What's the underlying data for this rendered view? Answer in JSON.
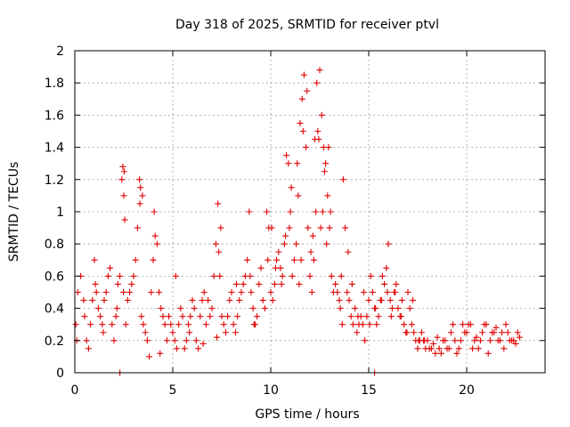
{
  "chart_data": {
    "type": "scatter",
    "title": "Day 318 of 2025, SRMTID for receiver ptvl",
    "xlabel": "GPS time / hours",
    "ylabel": "SRMTID / TECUs",
    "xlim": [
      0,
      24
    ],
    "ylim": [
      0,
      2
    ],
    "xticks": [
      0,
      5,
      10,
      15,
      20
    ],
    "xtick_labels": [
      "0",
      "5",
      "10",
      "15",
      "20"
    ],
    "yticks": [
      0,
      0.2,
      0.4,
      0.6,
      0.8,
      1,
      1.2,
      1.4,
      1.6,
      1.8,
      2
    ],
    "ytick_labels": [
      "0",
      "0.2",
      "0.4",
      "0.6",
      "0.8",
      "1",
      "1.2",
      "1.4",
      "1.6",
      "1.8",
      "2"
    ],
    "grid": true,
    "marker": "plus",
    "color": "#e00000",
    "series": [
      {
        "name": "SRMTID",
        "x": [
          0.05,
          0.15,
          0.3,
          0.45,
          0.6,
          0.7,
          0.8,
          0.9,
          1.0,
          1.1,
          1.2,
          1.3,
          1.4,
          1.5,
          1.6,
          1.7,
          1.8,
          1.9,
          2.0,
          2.1,
          2.2,
          2.3,
          2.4,
          2.45,
          2.5,
          2.55,
          2.6,
          2.7,
          2.8,
          2.9,
          3.0,
          3.1,
          3.2,
          3.3,
          3.35,
          3.4,
          3.5,
          3.6,
          3.7,
          3.8,
          3.9,
          4.0,
          4.1,
          4.2,
          4.3,
          4.4,
          4.5,
          4.6,
          4.7,
          4.8,
          4.9,
          5.0,
          5.1,
          5.2,
          5.3,
          5.4,
          5.5,
          5.6,
          5.7,
          5.8,
          5.9,
          6.0,
          6.1,
          6.2,
          6.3,
          6.4,
          6.5,
          6.6,
          6.7,
          6.8,
          6.9,
          7.0,
          7.1,
          7.2,
          7.3,
          7.4,
          7.5,
          7.6,
          7.7,
          7.8,
          7.9,
          8.0,
          8.1,
          8.2,
          8.3,
          8.4,
          8.5,
          8.6,
          8.7,
          8.8,
          8.9,
          9.0,
          9.1,
          9.2,
          9.3,
          9.4,
          9.5,
          9.6,
          9.7,
          9.8,
          9.9,
          10.0,
          10.1,
          10.2,
          10.3,
          10.4,
          10.5,
          10.6,
          10.7,
          10.8,
          10.9,
          11.0,
          11.1,
          11.2,
          11.3,
          11.4,
          11.5,
          11.6,
          11.7,
          11.8,
          11.9,
          12.0,
          12.1,
          12.2,
          12.3,
          12.4,
          12.5,
          12.6,
          12.7,
          12.8,
          12.9,
          13.0,
          13.1,
          13.2,
          13.3,
          13.4,
          13.5,
          13.6,
          13.7,
          13.8,
          13.9,
          14.0,
          14.1,
          14.2,
          14.3,
          14.4,
          14.5,
          14.6,
          14.7,
          14.8,
          14.9,
          15.0,
          15.1,
          15.2,
          15.3,
          15.4,
          15.5,
          15.6,
          15.7,
          15.8,
          15.9,
          16.0,
          16.1,
          16.2,
          16.3,
          16.4,
          16.5,
          16.6,
          16.7,
          16.8,
          16.9,
          17.0,
          17.1,
          17.2,
          17.3,
          17.4,
          17.5,
          17.6,
          17.7,
          17.8,
          17.9,
          18.0,
          18.2,
          18.4,
          18.6,
          18.8,
          19.0,
          19.2,
          19.4,
          19.6,
          19.8,
          20.0,
          20.2,
          20.4,
          20.6,
          20.8,
          21.0,
          21.2,
          21.4,
          21.6,
          21.8,
          22.0,
          22.2,
          22.4,
          22.6,
          22.7,
          0.1,
          0.5,
          1.05,
          1.45,
          2.15,
          2.48,
          2.52,
          3.32,
          3.45,
          4.05,
          4.35,
          5.15,
          5.85,
          6.55,
          7.25,
          7.35,
          7.45,
          8.25,
          8.95,
          9.15,
          9.85,
          10.05,
          10.25,
          10.55,
          10.75,
          10.95,
          11.05,
          11.35,
          11.45,
          11.55,
          11.65,
          11.85,
          12.05,
          12.15,
          12.25,
          12.35,
          12.45,
          12.55,
          12.65,
          12.75,
          12.85,
          12.95,
          13.05,
          13.55,
          13.65,
          13.95,
          14.15,
          14.45,
          14.75,
          15.05,
          15.35,
          15.65,
          15.95,
          16.15,
          16.35,
          16.65,
          16.95,
          17.25,
          17.55,
          17.85,
          18.1,
          18.3,
          18.5,
          18.7,
          18.9,
          19.1,
          19.3,
          19.5,
          19.7,
          19.9,
          20.1,
          20.3,
          20.5,
          20.7,
          20.9,
          21.1,
          21.3,
          21.5,
          21.7,
          21.9,
          22.1,
          22.3,
          22.5,
          2.3,
          15.3
        ],
        "y": [
          0.3,
          0.5,
          0.6,
          0.45,
          0.2,
          0.15,
          0.3,
          0.45,
          0.7,
          0.5,
          0.4,
          0.35,
          0.3,
          0.45,
          0.5,
          0.6,
          0.65,
          0.3,
          0.2,
          0.35,
          0.55,
          0.6,
          1.2,
          1.28,
          1.1,
          0.95,
          0.3,
          0.45,
          0.5,
          0.55,
          0.6,
          0.7,
          0.9,
          1.2,
          1.15,
          0.35,
          0.3,
          0.25,
          0.2,
          0.1,
          0.5,
          0.7,
          0.85,
          0.8,
          0.5,
          0.4,
          0.35,
          0.3,
          0.2,
          0.35,
          0.3,
          0.25,
          0.2,
          0.15,
          0.3,
          0.4,
          0.35,
          0.15,
          0.2,
          0.3,
          0.35,
          0.45,
          0.4,
          0.2,
          0.15,
          0.35,
          0.45,
          0.5,
          0.3,
          0.45,
          0.35,
          0.4,
          0.6,
          0.8,
          1.05,
          0.6,
          0.35,
          0.3,
          0.25,
          0.35,
          0.45,
          0.5,
          0.3,
          0.25,
          0.35,
          0.45,
          0.5,
          0.55,
          0.6,
          0.7,
          1.0,
          0.5,
          0.4,
          0.3,
          0.35,
          0.55,
          0.65,
          0.45,
          0.4,
          1.0,
          0.9,
          0.5,
          0.45,
          0.55,
          0.7,
          0.75,
          0.65,
          0.6,
          0.8,
          1.35,
          1.3,
          1.0,
          0.6,
          0.7,
          0.8,
          1.1,
          1.55,
          1.7,
          1.85,
          1.4,
          0.9,
          0.6,
          0.5,
          0.7,
          1.0,
          1.5,
          1.88,
          1.6,
          1.4,
          1.3,
          1.1,
          0.9,
          0.6,
          0.5,
          0.55,
          0.5,
          0.45,
          0.6,
          1.2,
          0.9,
          0.5,
          0.45,
          0.35,
          0.3,
          0.4,
          0.25,
          0.3,
          0.35,
          0.3,
          0.2,
          0.35,
          0.45,
          0.6,
          0.5,
          0.4,
          0.3,
          0.35,
          0.45,
          0.6,
          0.55,
          0.65,
          0.8,
          0.45,
          0.4,
          0.5,
          0.55,
          0.4,
          0.35,
          0.45,
          0.3,
          0.25,
          0.5,
          0.4,
          0.3,
          0.25,
          0.2,
          0.15,
          0.2,
          0.25,
          0.2,
          0.15,
          0.2,
          0.15,
          0.12,
          0.15,
          0.2,
          0.15,
          0.25,
          0.2,
          0.15,
          0.3,
          0.25,
          0.3,
          0.2,
          0.15,
          0.25,
          0.3,
          0.2,
          0.25,
          0.2,
          0.25,
          0.3,
          0.2,
          0.2,
          0.25,
          0.22,
          0.2,
          0.35,
          0.55,
          0.25,
          0.4,
          0.5,
          1.25,
          1.05,
          1.1,
          1.0,
          0.12,
          0.6,
          0.25,
          0.18,
          0.22,
          0.75,
          0.9,
          0.55,
          0.6,
          0.3,
          0.7,
          0.9,
          0.65,
          0.55,
          0.85,
          0.9,
          1.15,
          1.3,
          0.55,
          0.7,
          1.5,
          1.75,
          0.75,
          0.85,
          1.45,
          1.8,
          1.45,
          0.9,
          1.0,
          1.25,
          0.8,
          1.4,
          1.0,
          0.4,
          0.3,
          0.75,
          0.55,
          0.35,
          0.5,
          0.3,
          0.4,
          0.45,
          0.5,
          0.35,
          0.5,
          0.35,
          0.25,
          0.45,
          0.2,
          0.2,
          0.15,
          0.18,
          0.22,
          0.12,
          0.2,
          0.15,
          0.3,
          0.12,
          0.2,
          0.25,
          0.3,
          0.15,
          0.22,
          0.2,
          0.3,
          0.12,
          0.25,
          0.28,
          0.2,
          0.15,
          0.25,
          0.2,
          0.18,
          0.0,
          0.0
        ]
      }
    ]
  }
}
